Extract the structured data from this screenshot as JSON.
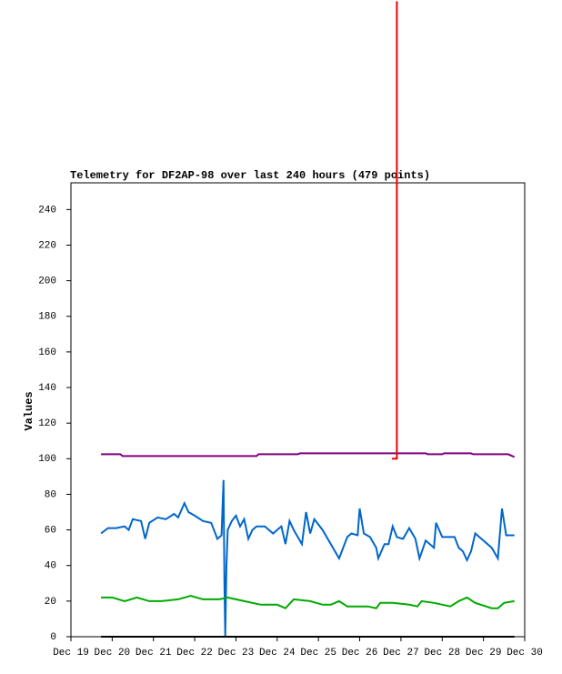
{
  "chart_data": {
    "type": "line",
    "title": "Telemetry for DF2AP-98 over last 240 hours (479 points)",
    "y_label": "Values",
    "xlim": [
      19,
      30
    ],
    "xticks": [
      {
        "value": 19,
        "label": "Dec 19"
      },
      {
        "value": 20,
        "label": "Dec 20"
      },
      {
        "value": 21,
        "label": "Dec 21"
      },
      {
        "value": 22,
        "label": "Dec 22"
      },
      {
        "value": 23,
        "label": "Dec 23"
      },
      {
        "value": 24,
        "label": "Dec 24"
      },
      {
        "value": 25,
        "label": "Dec 25"
      },
      {
        "value": 26,
        "label": "Dec 26"
      },
      {
        "value": 27,
        "label": "Dec 27"
      },
      {
        "value": 28,
        "label": "Dec 28"
      },
      {
        "value": 29,
        "label": "Dec 29"
      },
      {
        "value": 30,
        "label": "Dec 30"
      }
    ],
    "ylim": [
      0,
      255
    ],
    "yticks": [
      0,
      20,
      40,
      60,
      80,
      100,
      120,
      140,
      160,
      180,
      200,
      220,
      240
    ],
    "series": [
      {
        "color": "#800080",
        "x": [
          19.73,
          20.2,
          20.25,
          23.5,
          23.55,
          24.5,
          24.55,
          27.6,
          27.65,
          28.0,
          28.05,
          28.7,
          28.75,
          29.6,
          29.75
        ],
        "values": [
          102.5,
          102.5,
          101.5,
          101.5,
          102.5,
          102.5,
          103,
          103,
          102.5,
          102.5,
          103,
          103,
          102.5,
          102.5,
          101
        ]
      },
      {
        "color": "#0066cc",
        "x": [
          19.73,
          19.9,
          20.1,
          20.3,
          20.4,
          20.5,
          20.7,
          20.8,
          20.9,
          21.1,
          21.3,
          21.5,
          21.6,
          21.75,
          21.85,
          22.0,
          22.2,
          22.4,
          22.5,
          22.55,
          22.65,
          22.7,
          22.72,
          22.74,
          22.77,
          22.8,
          22.9,
          23.0,
          23.1,
          23.2,
          23.3,
          23.4,
          23.5,
          23.7,
          23.9,
          24.0,
          24.1,
          24.2,
          24.3,
          24.4,
          24.6,
          24.7,
          24.8,
          24.9,
          25.1,
          25.3,
          25.5,
          25.7,
          25.8,
          25.95,
          26.0,
          26.1,
          26.25,
          26.4,
          26.45,
          26.6,
          26.7,
          26.8,
          26.9,
          27.05,
          27.2,
          27.35,
          27.45,
          27.6,
          27.8,
          27.85,
          28.0,
          28.3,
          28.4,
          28.5,
          28.6,
          28.7,
          28.8,
          28.95,
          29.2,
          29.35,
          29.45,
          29.55,
          29.75
        ],
        "values": [
          58,
          61,
          61,
          62,
          60,
          66,
          65,
          55,
          64,
          67,
          66,
          69,
          67,
          75,
          70,
          68,
          65,
          64,
          58,
          55,
          57,
          88,
          30,
          0,
          40,
          60,
          65,
          68,
          62,
          66,
          55,
          60,
          62,
          62,
          58,
          60,
          62,
          52,
          65,
          60,
          52,
          70,
          58,
          66,
          60,
          52,
          44,
          56,
          58,
          57,
          72,
          58,
          56,
          50,
          44,
          52,
          52,
          62,
          56,
          55,
          61,
          55,
          44,
          54,
          50,
          64,
          56,
          56,
          50,
          48,
          43,
          48,
          58,
          55,
          50,
          44,
          72,
          57,
          57
        ]
      },
      {
        "color": "#00aa00",
        "x": [
          19.73,
          20.0,
          20.3,
          20.6,
          20.9,
          21.2,
          21.6,
          21.9,
          22.2,
          22.6,
          22.8,
          23.2,
          23.6,
          24.0,
          24.2,
          24.4,
          24.8,
          25.1,
          25.3,
          25.5,
          25.7,
          26.2,
          26.4,
          26.5,
          26.8,
          27.2,
          27.4,
          27.5,
          27.8,
          28.2,
          28.4,
          28.6,
          28.8,
          29.2,
          29.35,
          29.5,
          29.75
        ],
        "values": [
          22,
          22,
          20,
          22,
          20,
          20,
          21,
          23,
          21,
          21,
          22,
          20,
          18,
          18,
          16,
          21,
          20,
          18,
          18,
          20,
          17,
          17,
          16,
          19,
          19,
          18,
          17,
          20,
          19,
          17,
          20,
          22,
          19,
          16,
          16,
          19,
          20
        ]
      },
      {
        "color": "#000000",
        "x": [
          19.73,
          29.75
        ],
        "values": [
          0,
          0
        ]
      },
      {
        "color": "#ee0000",
        "x": [
          26.78,
          26.9,
          26.9
        ],
        "values": [
          100,
          100,
          357
        ]
      }
    ]
  }
}
